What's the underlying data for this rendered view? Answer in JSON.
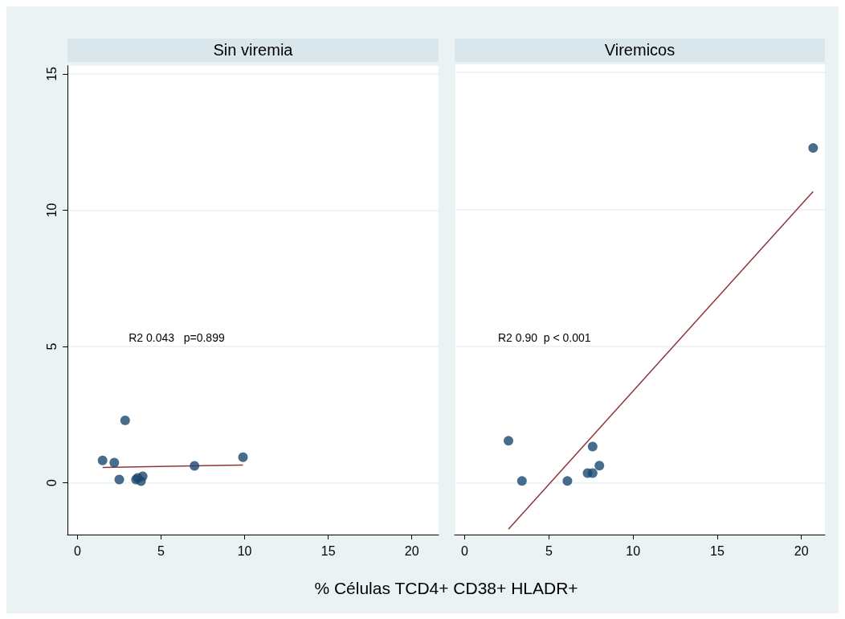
{
  "chart_data": [
    {
      "type": "scatter",
      "title": "Sin viremia",
      "xlabel": "% Células TCD4+ CD38+ HLADR+",
      "xlim": [
        -0.6,
        21.6
      ],
      "xticks": [
        0,
        5,
        10,
        15,
        20
      ],
      "ylim": [
        -1.9,
        15.3
      ],
      "yticks": [
        0,
        5,
        10,
        15
      ],
      "grid": "y",
      "annotations": [
        "R2 0.043   p=0.899"
      ],
      "series": [
        {
          "marker": "circle",
          "color": "#1a476f",
          "x": [
            1.5,
            2.2,
            2.85,
            2.5,
            3.5,
            3.9,
            3.8,
            3.6,
            7.0,
            9.9
          ],
          "values": [
            0.82,
            0.74,
            2.29,
            0.12,
            0.12,
            0.24,
            0.06,
            0.18,
            0.62,
            0.94
          ]
        },
        {
          "type": "line",
          "marker": "none",
          "color": "#90353b",
          "x": [
            1.5,
            9.9
          ],
          "values": [
            0.56,
            0.65
          ]
        }
      ]
    },
    {
      "type": "scatter",
      "title": "Viremicos",
      "xlim": [
        -0.6,
        21.4
      ],
      "xticks": [
        0,
        5,
        10,
        15,
        20
      ],
      "ylim": [
        -1.9,
        15.3
      ],
      "yticks": [
        0,
        5,
        10,
        15
      ],
      "grid": "y",
      "tick_labels": "x",
      "annotations": [
        "R2 0.90  p < 0.001"
      ],
      "series": [
        {
          "marker": "circle",
          "color": "#1a476f",
          "x": [
            2.6,
            3.4,
            6.1,
            7.6,
            8.0,
            7.3,
            7.6,
            20.7
          ],
          "values": [
            1.53,
            0.06,
            0.06,
            1.32,
            0.62,
            0.35,
            0.35,
            12.24
          ]
        },
        {
          "type": "line",
          "marker": "none",
          "color": "#90353b",
          "x": [
            2.6,
            20.7
          ],
          "values": [
            -1.7,
            10.65
          ]
        }
      ]
    }
  ]
}
